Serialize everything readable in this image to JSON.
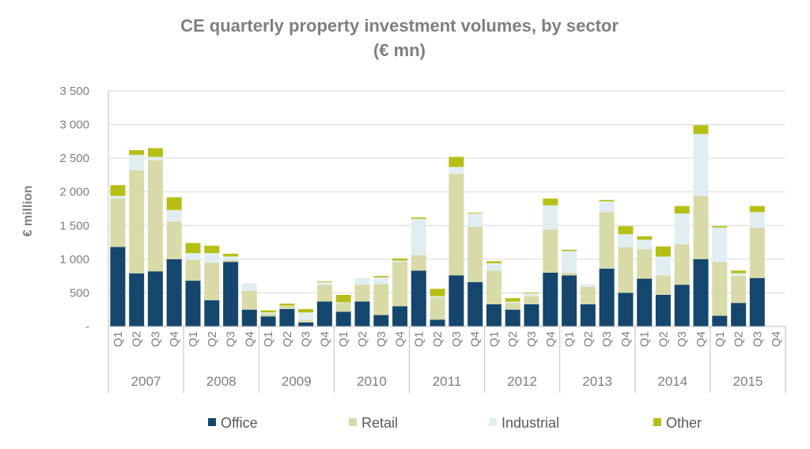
{
  "chart_data": {
    "type": "stacked-bar",
    "title": "CE quarterly property investment volumes, by sector",
    "subtitle": "(€ mn)",
    "ylabel": "€ million",
    "ylim": [
      0,
      3500
    ],
    "yticks": [
      0,
      500,
      1000,
      1500,
      2000,
      2500,
      3000,
      3500
    ],
    "ytick_labels": [
      "-",
      "500",
      "1 000",
      "1 500",
      "2 000",
      "2 500",
      "3 000",
      "3 500"
    ],
    "years": [
      "2007",
      "2008",
      "2009",
      "2010",
      "2011",
      "2012",
      "2013",
      "2014",
      "2015"
    ],
    "quarters": [
      "Q1",
      "Q2",
      "Q3",
      "Q4"
    ],
    "series": [
      {
        "name": "Office",
        "color": "#14466e",
        "values": [
          1180,
          790,
          820,
          1000,
          680,
          390,
          960,
          250,
          150,
          260,
          60,
          370,
          220,
          370,
          170,
          300,
          830,
          100,
          760,
          660,
          330,
          250,
          330,
          800,
          760,
          330,
          860,
          500,
          710,
          470,
          620,
          1000,
          160,
          350,
          720,
          null
        ]
      },
      {
        "name": "Retail",
        "color": "#d8dba8",
        "values": [
          720,
          1530,
          1650,
          560,
          310,
          560,
          30,
          280,
          40,
          40,
          30,
          250,
          130,
          250,
          460,
          660,
          230,
          330,
          1510,
          820,
          500,
          100,
          120,
          640,
          40,
          260,
          840,
          680,
          440,
          290,
          600,
          940,
          800,
          400,
          750,
          null
        ]
      },
      {
        "name": "Industrial",
        "color": "#e1eef1",
        "values": [
          40,
          230,
          50,
          170,
          100,
          140,
          50,
          110,
          20,
          10,
          120,
          40,
          10,
          100,
          100,
          20,
          540,
          20,
          100,
          200,
          110,
          20,
          40,
          360,
          320,
          40,
          160,
          190,
          140,
          280,
          460,
          920,
          510,
          40,
          230,
          null
        ]
      },
      {
        "name": "Other",
        "color": "#b7bf16",
        "values": [
          160,
          70,
          130,
          190,
          150,
          110,
          40,
          0,
          30,
          30,
          50,
          10,
          110,
          0,
          20,
          30,
          20,
          110,
          150,
          10,
          30,
          50,
          10,
          100,
          20,
          0,
          20,
          120,
          50,
          150,
          110,
          130,
          20,
          40,
          90,
          null
        ]
      }
    ]
  },
  "legend": {
    "office": "Office",
    "retail": "Retail",
    "industrial": "Industrial",
    "other": "Other"
  }
}
